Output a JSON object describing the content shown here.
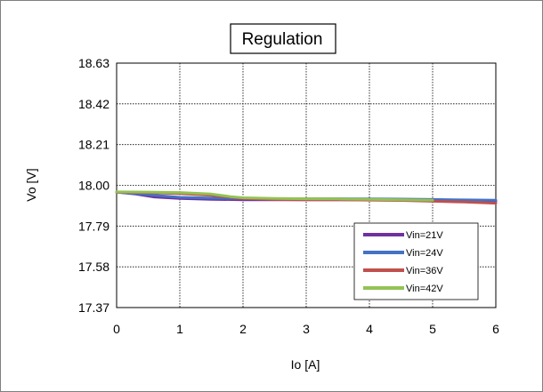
{
  "chart_data": {
    "type": "line",
    "title": "Regulation",
    "xlabel": "Io  [A]",
    "ylabel": "Vo  [V]",
    "xlim": [
      0,
      6
    ],
    "ylim": [
      17.37,
      18.63
    ],
    "xticks": [
      "0",
      "1",
      "2",
      "3",
      "4",
      "5",
      "6"
    ],
    "yticks": [
      "17.37",
      "17.58",
      "17.79",
      "18.00",
      "18.21",
      "18.42",
      "18.63"
    ],
    "grid": true,
    "legend_position": "bottom-right",
    "series": [
      {
        "name": "Vin=21V",
        "color": "#7030a0",
        "x": [
          0,
          0.3,
          0.6,
          1,
          1.5,
          2,
          2.5,
          3,
          3.5,
          4,
          4.5,
          5,
          5.5,
          6
        ],
        "y": [
          17.965,
          17.955,
          17.94,
          17.932,
          17.928,
          17.926,
          17.926,
          17.926,
          17.926,
          17.926,
          17.924,
          17.922,
          17.92,
          17.918
        ]
      },
      {
        "name": "Vin=24V",
        "color": "#4472c4",
        "x": [
          0,
          0.3,
          0.6,
          1,
          1.5,
          2,
          2.5,
          3,
          3.5,
          4,
          4.5,
          5,
          5.5,
          6
        ],
        "y": [
          17.965,
          17.958,
          17.948,
          17.938,
          17.934,
          17.932,
          17.931,
          17.931,
          17.931,
          17.93,
          17.929,
          17.927,
          17.925,
          17.923
        ]
      },
      {
        "name": "Vin=36V",
        "color": "#c0504d",
        "x": [
          0,
          0.5,
          1,
          1.5,
          2,
          2.5,
          3,
          3.5,
          4,
          4.5,
          5,
          5.5,
          6
        ],
        "y": [
          17.965,
          17.962,
          17.958,
          17.948,
          17.932,
          17.927,
          17.926,
          17.926,
          17.924,
          17.922,
          17.918,
          17.914,
          17.908
        ]
      },
      {
        "name": "Vin=42V",
        "color": "#92c353",
        "x": [
          0,
          0.5,
          1,
          1.5,
          1.8,
          2,
          2.5,
          3,
          3.5,
          4,
          4.5,
          5
        ],
        "y": [
          17.966,
          17.965,
          17.963,
          17.955,
          17.942,
          17.936,
          17.932,
          17.931,
          17.93,
          17.928,
          17.926,
          17.923
        ]
      }
    ]
  }
}
